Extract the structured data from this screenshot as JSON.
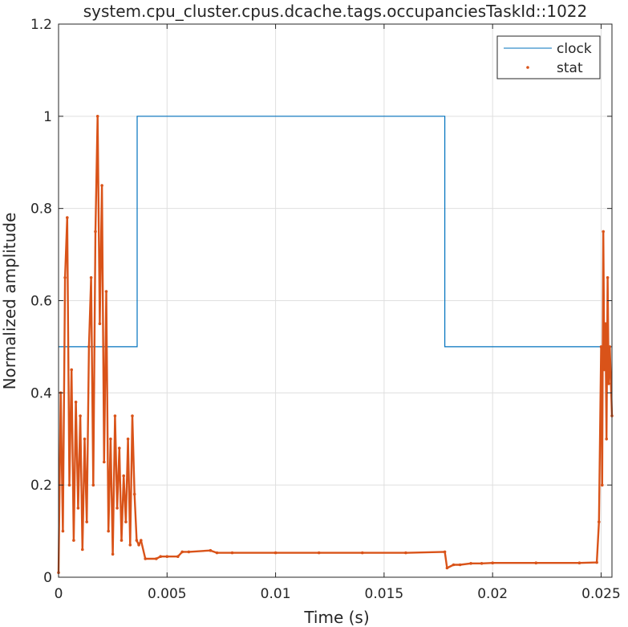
{
  "chart_data": {
    "type": "line",
    "title": "system.cpu_cluster.cpus.dcache.tags.occupanciesTaskId::1022",
    "xlabel": "Time (s)",
    "ylabel": "Normalized amplitude",
    "xlim": [
      0,
      0.0255
    ],
    "ylim": [
      0,
      1.2
    ],
    "xticks": [
      0,
      0.005,
      0.01,
      0.015,
      0.02,
      0.025
    ],
    "xtick_labels": [
      "0",
      "0.005",
      "0.01",
      "0.015",
      "0.02",
      "0.025"
    ],
    "yticks": [
      0,
      0.2,
      0.4,
      0.6,
      0.8,
      1.0,
      1.2
    ],
    "ytick_labels": [
      "0",
      "0.2",
      "0.4",
      "0.6",
      "0.8",
      "1",
      "1.2"
    ],
    "grid": true,
    "legend_position": "top-right",
    "series": [
      {
        "name": "clock",
        "style": "line",
        "color": "#0072BD",
        "x": [
          0,
          0.00362,
          0.00362,
          0.0178,
          0.0178,
          0.0255
        ],
        "y": [
          0.5,
          0.5,
          1.0,
          1.0,
          0.5,
          0.5
        ]
      },
      {
        "name": "stat",
        "style": "dots",
        "color": "#D95319",
        "x": [
          0,
          0.0001,
          0.0002,
          0.0003,
          0.0004,
          0.0005,
          0.0006,
          0.0007,
          0.0008,
          0.0009,
          0.001,
          0.0011,
          0.0012,
          0.0013,
          0.0014,
          0.0015,
          0.0016,
          0.0017,
          0.0018,
          0.0019,
          0.002,
          0.0021,
          0.0022,
          0.0023,
          0.0024,
          0.0025,
          0.0026,
          0.0027,
          0.0028,
          0.0029,
          0.003,
          0.0031,
          0.0032,
          0.0033,
          0.0034,
          0.0035,
          0.0036,
          0.0037,
          0.0038,
          0.004,
          0.0045,
          0.0047,
          0.005,
          0.0055,
          0.0057,
          0.006,
          0.007,
          0.0073,
          0.008,
          0.01,
          0.012,
          0.014,
          0.016,
          0.0178,
          0.0179,
          0.0182,
          0.0185,
          0.019,
          0.0195,
          0.02,
          0.022,
          0.024,
          0.0248,
          0.0249,
          0.025,
          0.02505,
          0.0251,
          0.02515,
          0.0252,
          0.02525,
          0.0253,
          0.02535,
          0.0254,
          0.0255
        ],
        "y": [
          0.01,
          0.4,
          0.1,
          0.65,
          0.78,
          0.2,
          0.45,
          0.08,
          0.38,
          0.15,
          0.35,
          0.06,
          0.3,
          0.12,
          0.5,
          0.65,
          0.2,
          0.75,
          1.0,
          0.55,
          0.85,
          0.25,
          0.62,
          0.1,
          0.3,
          0.05,
          0.35,
          0.15,
          0.28,
          0.08,
          0.22,
          0.12,
          0.3,
          0.07,
          0.35,
          0.18,
          0.08,
          0.07,
          0.08,
          0.04,
          0.04,
          0.045,
          0.045,
          0.045,
          0.055,
          0.055,
          0.058,
          0.053,
          0.053,
          0.053,
          0.053,
          0.053,
          0.053,
          0.055,
          0.02,
          0.027,
          0.027,
          0.03,
          0.03,
          0.031,
          0.031,
          0.031,
          0.032,
          0.12,
          0.5,
          0.2,
          0.75,
          0.45,
          0.55,
          0.3,
          0.65,
          0.42,
          0.5,
          0.35
        ]
      }
    ]
  }
}
